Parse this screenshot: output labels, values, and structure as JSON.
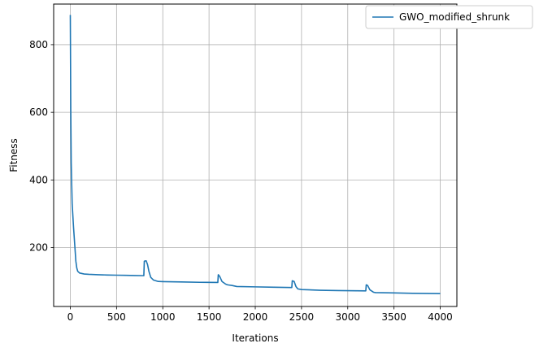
{
  "chart_data": {
    "type": "line",
    "title": "",
    "xlabel": "Iterations",
    "ylabel": "Fitness",
    "xlim": [
      -180,
      4180
    ],
    "ylim": [
      26,
      920
    ],
    "x_ticks": [
      0,
      500,
      1000,
      1500,
      2000,
      2500,
      3000,
      3500,
      4000
    ],
    "y_ticks": [
      200,
      400,
      600,
      800
    ],
    "grid": true,
    "legend_position": "top-right",
    "series": [
      {
        "name": "GWO_modified_shrunk",
        "color": "#1f77b4",
        "points": [
          [
            0,
            888
          ],
          [
            5,
            610
          ],
          [
            10,
            450
          ],
          [
            20,
            330
          ],
          [
            35,
            260
          ],
          [
            50,
            200
          ],
          [
            60,
            160
          ],
          [
            70,
            140
          ],
          [
            80,
            130
          ],
          [
            100,
            125
          ],
          [
            150,
            122
          ],
          [
            200,
            121
          ],
          [
            300,
            120
          ],
          [
            400,
            119
          ],
          [
            500,
            118.5
          ],
          [
            600,
            118
          ],
          [
            700,
            117.5
          ],
          [
            795,
            117
          ],
          [
            800,
            160
          ],
          [
            820,
            161
          ],
          [
            835,
            150
          ],
          [
            850,
            130
          ],
          [
            870,
            112
          ],
          [
            900,
            104
          ],
          [
            950,
            100
          ],
          [
            1000,
            99.5
          ],
          [
            1200,
            98.5
          ],
          [
            1400,
            97.5
          ],
          [
            1595,
            97
          ],
          [
            1600,
            120
          ],
          [
            1615,
            115
          ],
          [
            1640,
            100
          ],
          [
            1680,
            92
          ],
          [
            1700,
            90
          ],
          [
            1750,
            88
          ],
          [
            1800,
            85
          ],
          [
            2000,
            84
          ],
          [
            2200,
            83
          ],
          [
            2395,
            82
          ],
          [
            2400,
            102
          ],
          [
            2420,
            100
          ],
          [
            2440,
            85
          ],
          [
            2460,
            78
          ],
          [
            2500,
            76
          ],
          [
            2700,
            74
          ],
          [
            2900,
            73
          ],
          [
            3195,
            72
          ],
          [
            3200,
            90
          ],
          [
            3215,
            88
          ],
          [
            3240,
            75
          ],
          [
            3280,
            68
          ],
          [
            3300,
            67
          ],
          [
            3500,
            66
          ],
          [
            3700,
            65
          ],
          [
            4000,
            64
          ]
        ]
      }
    ]
  }
}
